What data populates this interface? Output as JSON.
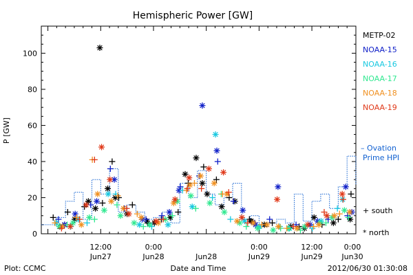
{
  "chart_data": {
    "type": "scatter",
    "title": "Hemispheric Power [GW]",
    "ylabel": "P [GW]",
    "xlabel": "Date and Time",
    "ylim": [
      0,
      115
    ],
    "yticks": [
      0,
      20,
      40,
      60,
      80,
      100
    ],
    "xlim": [
      -1.5,
      70
    ],
    "xticks": [
      {
        "x": 12,
        "time": "12:00",
        "date": "Jun27"
      },
      {
        "x": 24,
        "time": "0:00",
        "date": "Jun28"
      },
      {
        "x": 36,
        "time": "",
        "date": "Jun28"
      },
      {
        "x": 48,
        "time": "0:00",
        "date": "Jun29"
      },
      {
        "x": 60,
        "time": "12:00",
        "date": "Jun29"
      },
      {
        "x": 72,
        "time": "0:00",
        "date": "Jun30"
      }
    ],
    "x_note": "x values are hours after 2012/06/27 00:00",
    "legend": {
      "placement": "right",
      "satellites": [
        {
          "name": "METP-02",
          "color": "#000000"
        },
        {
          "name": "NOAA-15",
          "color": "#1020c8"
        },
        {
          "name": "NOAA-16",
          "color": "#18c8e0"
        },
        {
          "name": "NOAA-17",
          "color": "#30e890"
        },
        {
          "name": "NOAA-18",
          "color": "#f09020"
        },
        {
          "name": "NOAA-19",
          "color": "#e03818"
        }
      ],
      "ovation_label_1": "– Ovation",
      "ovation_label_2": "Prime HPI",
      "ovation_color": "#1060d0",
      "south_label": "+ south",
      "north_label": "* north"
    },
    "ovation_hpi": {
      "x": [
        -1.5,
        2,
        4,
        6,
        8,
        10,
        12,
        14,
        16,
        18,
        20,
        22,
        24,
        26,
        28,
        30,
        32,
        34,
        36,
        38,
        40,
        42,
        44,
        46,
        48,
        50,
        52,
        54,
        56,
        58,
        60,
        62,
        64,
        66,
        68,
        70
      ],
      "y": [
        5,
        9,
        18,
        23,
        8,
        30,
        22,
        36,
        12,
        16,
        12,
        8,
        9,
        12,
        6,
        28,
        20,
        35,
        22,
        16,
        20,
        28,
        8,
        10,
        4,
        6,
        8,
        6,
        22,
        7,
        18,
        22,
        14,
        26,
        43,
        27
      ]
    },
    "series": [
      {
        "sat": "METP-02",
        "hemisphere": "north",
        "x": [
          11.8,
          33.7,
          9.2,
          6.1,
          13.6,
          22.5,
          18.0,
          35.1,
          49.2,
          58.3,
          64.9,
          68.7,
          42.5,
          27.8,
          3.8,
          15.3,
          31.2,
          55.2,
          46.2,
          39.5,
          60.5,
          24.2,
          2.7,
          10.8,
          36.2
        ],
        "y": [
          103,
          42,
          18,
          8,
          25,
          7,
          11,
          28,
          5,
          3,
          6,
          8,
          18,
          9,
          5,
          20,
          33,
          4,
          7,
          15,
          9,
          6,
          4,
          14,
          22
        ]
      },
      {
        "sat": "METP-02",
        "hemisphere": "south",
        "x": [
          35.4,
          14.6,
          8.3,
          19.2,
          4.5,
          25.8,
          31.9,
          41.2,
          51.0,
          57.1,
          62.3,
          68.9,
          12.4,
          38.3,
          45.8,
          29.6,
          22.7,
          16.1,
          1.2,
          66.0
        ],
        "y": [
          37,
          40,
          15,
          16,
          12,
          8,
          28,
          20,
          6,
          4,
          5,
          22,
          17,
          30,
          8,
          12,
          6,
          20,
          9,
          8
        ]
      },
      {
        "sat": "NOAA-15",
        "hemisphere": "north",
        "x": [
          35.1,
          52.3,
          38.4,
          15.1,
          6.2,
          21.5,
          27.6,
          44.3,
          59.6,
          67.7,
          3.8,
          11.1,
          29.8,
          47.2,
          61.3,
          69.1
        ],
        "y": [
          71,
          26,
          46,
          30,
          11,
          8,
          12,
          13,
          5,
          26,
          5,
          18,
          24,
          5,
          7,
          12
        ]
      },
      {
        "sat": "NOAA-15",
        "hemisphere": "south",
        "x": [
          34.4,
          38.6,
          14.2,
          9.7,
          22.3,
          30.1,
          42.2,
          50.4,
          56.4,
          63.7,
          2.4,
          17.4,
          25.9,
          47.0,
          68.1
        ],
        "y": [
          32,
          40,
          36,
          16,
          8,
          26,
          18,
          8,
          5,
          8,
          8,
          14,
          10,
          6,
          10
        ]
      },
      {
        "sat": "NOAA-16",
        "hemisphere": "north",
        "x": [
          38.1,
          13.7,
          6.9,
          20.8,
          32.8,
          44.7,
          54.9,
          62.1,
          67.0,
          1.9,
          27.3,
          48.1
        ],
        "y": [
          55,
          22,
          8,
          5,
          15,
          7,
          3,
          7,
          19,
          6,
          5,
          4
        ]
      },
      {
        "sat": "NOAA-16",
        "hemisphere": "south",
        "x": [
          37.4,
          15.4,
          8.9,
          23.6,
          30.6,
          41.5,
          52.7,
          60.1,
          5.2,
          65.8
        ],
        "y": [
          20,
          22,
          6,
          4,
          24,
          8,
          4,
          3,
          4,
          14
        ]
      },
      {
        "sat": "NOAA-17",
        "hemisphere": "north",
        "x": [
          2.6,
          5.7,
          9.4,
          12.8,
          16.5,
          19.6,
          23.1,
          26.7,
          29.4,
          32.5,
          36.8,
          40.1,
          43.6,
          47.7,
          51.2,
          54.7,
          58.4,
          61.8,
          64.6,
          67.4
        ],
        "y": [
          4,
          6,
          9,
          13,
          10,
          6,
          5,
          8,
          18,
          21,
          17,
          12,
          6,
          3,
          2,
          3,
          4,
          6,
          9,
          13
        ]
      },
      {
        "sat": "NOAA-17",
        "hemisphere": "south",
        "x": [
          4.4,
          10.6,
          15.7,
          21.7,
          28.3,
          33.6,
          39.4,
          45.1,
          52.9,
          57.4,
          63.2,
          68.3
        ],
        "y": [
          5,
          8,
          16,
          4,
          10,
          14,
          22,
          4,
          3,
          2,
          6,
          9
        ]
      },
      {
        "sat": "NOAA-18",
        "hemisphere": "north",
        "x": [
          11.3,
          14.4,
          17.2,
          21.2,
          28.6,
          32.3,
          34.7,
          37.8,
          40.7,
          46.7,
          52.4,
          56.6,
          61.6,
          65.1,
          68.6,
          3.3,
          7.6,
          25.1,
          43.0,
          49.8
        ],
        "y": [
          22,
          18,
          14,
          9,
          17,
          27,
          32,
          28,
          22,
          6,
          4,
          3,
          5,
          10,
          12,
          4,
          5,
          6,
          7,
          5
        ]
      },
      {
        "sat": "NOAA-18",
        "hemisphere": "south",
        "x": [
          10.1,
          15.9,
          20.3,
          31.5,
          33.3,
          39.7,
          48.6,
          54.3,
          60.4,
          66.3,
          1.6,
          6.5
        ],
        "y": [
          41,
          21,
          11,
          24,
          28,
          22,
          5,
          3,
          4,
          11,
          6,
          9
        ]
      },
      {
        "sat": "NOAA-19",
        "hemisphere": "north",
        "x": [
          12.2,
          14.1,
          32.1,
          36.6,
          39.9,
          52.1,
          8.7,
          18.4,
          24.6,
          28.9,
          44.1,
          59.1,
          63.4,
          66.9,
          5.1
        ],
        "y": [
          48,
          30,
          31,
          36,
          34,
          19,
          16,
          11,
          7,
          19,
          9,
          5,
          10,
          22,
          4
        ]
      },
      {
        "sat": "NOAA-19",
        "hemisphere": "south",
        "x": [
          10.6,
          31.7,
          34.9,
          41.1,
          7.2,
          17.9,
          26.2,
          45.4,
          55.8,
          62.8,
          67.1,
          3.1
        ],
        "y": [
          41,
          25,
          25,
          23,
          8,
          14,
          8,
          6,
          4,
          12,
          19,
          3
        ]
      }
    ],
    "footer": {
      "left": "Plot: CCMC",
      "center": "Date and Time",
      "right": "2012/06/30 01:30:08"
    }
  }
}
